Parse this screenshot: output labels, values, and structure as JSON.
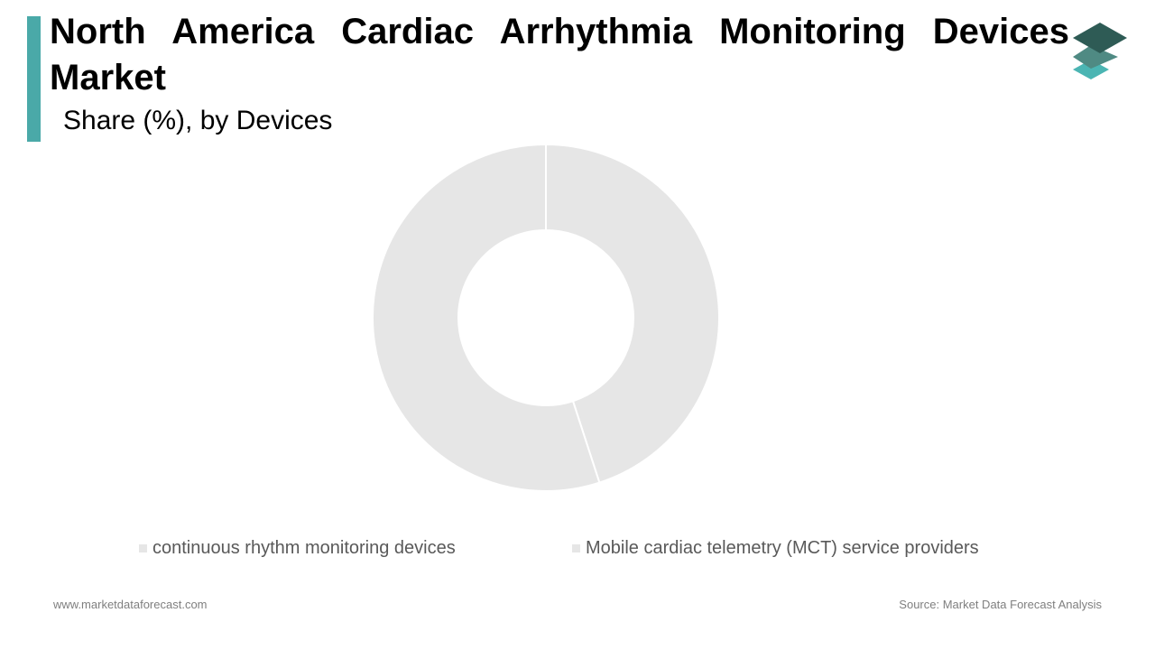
{
  "header": {
    "title": "North America Cardiac Arrhythmia Monitoring Devices Market",
    "subtitle": "Share (%), by Devices",
    "logo_name": "marketdataforecast-layers-logo"
  },
  "colors": {
    "accent": "#4aa9a8",
    "logo_top": "#2e5b55",
    "logo_middle": "#4f8a83",
    "logo_bottom": "#4bb5b3",
    "slice_fill": "#e6e6e6",
    "slice_stroke": "#ffffff"
  },
  "chart_data": {
    "type": "pie",
    "variant": "donut",
    "categories": [
      "Mobile cardiac telemetry (MCT) service providers",
      "continuous rhythm monitoring devices"
    ],
    "values": [
      45,
      55
    ],
    "unit": "%",
    "start_angle_deg": 0,
    "legend_order": [
      "continuous rhythm monitoring devices",
      "Mobile cardiac telemetry (MCT) service providers"
    ],
    "legend_position": "bottom",
    "title": "North America Cardiac Arrhythmia Monitoring Devices Market",
    "subtitle": "Share (%), by Devices"
  },
  "footer": {
    "website": "www.marketdataforecast.com",
    "source": "Source: Market Data Forecast Analysis"
  }
}
